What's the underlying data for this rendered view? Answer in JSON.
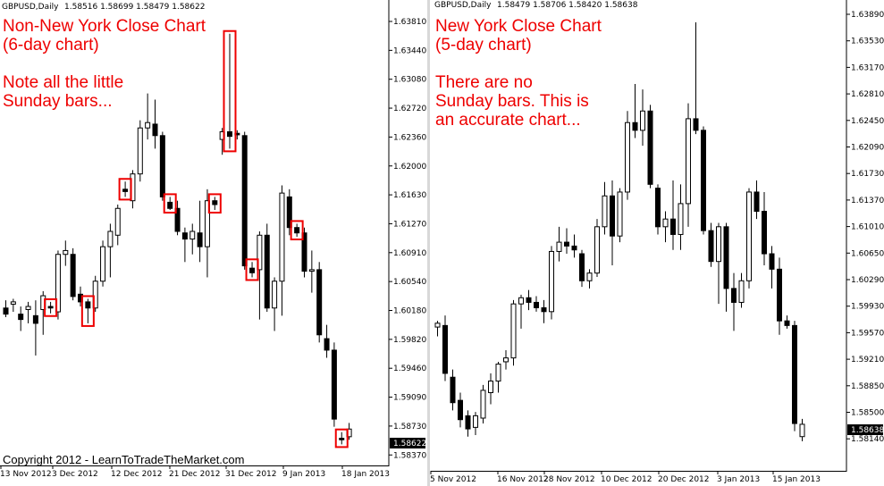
{
  "chart_data": [
    {
      "type": "candlestick",
      "header": {
        "symbol_label": "GBPUSD,Daily",
        "ohlc_text": "1.58516 1.58699 1.58479 1.58622"
      },
      "annotations": [
        "Non-New York Close Chart",
        "(6-day chart)",
        "",
        "Note all the little",
        "Sunday bars..."
      ],
      "copyright": "Copyright 2012 - LearnToTradeTheMarket.com",
      "price_ticks": [
        "1.63810",
        "1.63440",
        "1.63080",
        "1.62720",
        "1.62360",
        "1.62000",
        "1.61630",
        "1.61270",
        "1.60910",
        "1.60540",
        "1.60180",
        "1.59820",
        "1.59460",
        "1.59090",
        "1.58730",
        "1.58370"
      ],
      "date_ticks": [
        "13 Nov 2012",
        "3 Dec 2012",
        "12 Dec 2012",
        "21 Dec 2012",
        "31 Dec 2012",
        "9 Jan 2013",
        "18 Jan 2013"
      ],
      "last_price": "1.58622",
      "ylim": [
        1.5818,
        1.6401
      ],
      "highlight_color": "#ee0000",
      "candles": [
        [
          1.602,
          1.603,
          1.6008,
          1.6012
        ],
        [
          1.6025,
          1.6032,
          1.6015,
          1.6028
        ],
        [
          1.6012,
          1.6022,
          1.599,
          1.6005
        ],
        [
          1.6018,
          1.6028,
          1.6,
          1.6022
        ],
        [
          1.601,
          1.603,
          1.5958,
          1.6
        ],
        [
          1.6018,
          1.6042,
          1.5985,
          1.6036
        ],
        [
          1.6022,
          1.6028,
          1.6013,
          1.602
        ],
        [
          1.6015,
          1.6095,
          1.6005,
          1.609
        ],
        [
          1.609,
          1.6108,
          1.6075,
          1.6095
        ],
        [
          1.609,
          1.6098,
          1.603,
          1.6035
        ],
        [
          1.6038,
          1.6048,
          1.6022,
          1.6028
        ],
        [
          1.6028,
          1.6032,
          1.6,
          1.602
        ],
        [
          1.602,
          1.6062,
          1.6015,
          1.6055
        ],
        [
          1.6055,
          1.6108,
          1.6048,
          1.61
        ],
        [
          1.61,
          1.613,
          1.606,
          1.612
        ],
        [
          1.6115,
          1.6155,
          1.6102,
          1.615
        ],
        [
          1.6175,
          1.6185,
          1.6165,
          1.6172
        ],
        [
          1.616,
          1.62,
          1.615,
          1.6195
        ],
        [
          1.6195,
          1.6265,
          1.6185,
          1.6255
        ],
        [
          1.6255,
          1.63,
          1.624,
          1.6262
        ],
        [
          1.626,
          1.6292,
          1.6228,
          1.6245
        ],
        [
          1.6245,
          1.625,
          1.616,
          1.6165
        ],
        [
          1.6158,
          1.6165,
          1.6148,
          1.615
        ],
        [
          1.615,
          1.616,
          1.6115,
          1.612
        ],
        [
          1.6118,
          1.6125,
          1.608,
          1.611
        ],
        [
          1.611,
          1.613,
          1.609,
          1.612
        ],
        [
          1.6118,
          1.616,
          1.608,
          1.61
        ],
        [
          1.61,
          1.6175,
          1.606,
          1.616
        ],
        [
          1.616,
          1.6165,
          1.6148,
          1.6155
        ],
        [
          1.624,
          1.6255,
          1.622,
          1.625
        ],
        [
          1.625,
          1.6378,
          1.6228,
          1.6244
        ],
        [
          1.6248,
          1.6252,
          1.624,
          1.6246
        ],
        [
          1.6245,
          1.625,
          1.607,
          1.6075
        ],
        [
          1.6072,
          1.608,
          1.606,
          1.6066
        ],
        [
          1.607,
          1.612,
          1.6005,
          1.6115
        ],
        [
          1.6115,
          1.613,
          1.6015,
          1.602
        ],
        [
          1.602,
          1.606,
          1.599,
          1.6055
        ],
        [
          1.6055,
          1.618,
          1.601,
          1.617
        ],
        [
          1.6165,
          1.6175,
          1.6115,
          1.6125
        ],
        [
          1.6125,
          1.613,
          1.6113,
          1.6118
        ],
        [
          1.6118,
          1.6125,
          1.606,
          1.6068
        ],
        [
          1.6068,
          1.6095,
          1.604,
          1.607
        ],
        [
          1.607,
          1.608,
          1.5975,
          1.5985
        ],
        [
          1.598,
          1.5998,
          1.5955,
          1.5965
        ],
        [
          1.5965,
          1.5975,
          1.5865,
          1.5875
        ],
        [
          1.585,
          1.5858,
          1.5842,
          1.5848
        ],
        [
          1.5852,
          1.587,
          1.5848,
          1.5862
        ]
      ],
      "boxed_candle_indices": [
        6,
        11,
        16,
        22,
        28,
        30,
        33,
        39,
        45
      ]
    },
    {
      "type": "candlestick",
      "header": {
        "symbol_label": "GBPUSD,Daily",
        "ohlc_text": "1.58479 1.58706 1.58420 1.58638"
      },
      "annotations": [
        "New York Close Chart",
        "(5-day chart)",
        "",
        "There are no",
        "Sunday bars. This is",
        "an accurate chart..."
      ],
      "price_ticks": [
        "1.63890",
        "1.63530",
        "1.63170",
        "1.62810",
        "1.62450",
        "1.62090",
        "1.61730",
        "1.61370",
        "1.61010",
        "1.60650",
        "1.60290",
        "1.59930",
        "1.59570",
        "1.59210",
        "1.58850",
        "1.58500",
        "1.58140"
      ],
      "date_ticks": [
        "5 Nov 2012",
        "16 Nov 2012",
        "28 Nov 2012",
        "10 Dec 2012",
        "20 Dec 2012",
        "3 Jan 2013",
        "15 Jan 2013"
      ],
      "last_price": "1.58638",
      "ylim": [
        1.5806,
        1.64
      ],
      "candles": [
        [
          1.599,
          1.5998,
          1.5978,
          1.5995
        ],
        [
          1.5992,
          1.6005,
          1.592,
          1.593
        ],
        [
          1.5925,
          1.5935,
          1.5882,
          1.5892
        ],
        [
          1.5895,
          1.5905,
          1.586,
          1.587
        ],
        [
          1.5875,
          1.5882,
          1.5848,
          1.5858
        ],
        [
          1.586,
          1.588,
          1.585,
          1.5875
        ],
        [
          1.5872,
          1.5915,
          1.5865,
          1.5908
        ],
        [
          1.5905,
          1.593,
          1.589,
          1.592
        ],
        [
          1.592,
          1.5945,
          1.5905,
          1.5942
        ],
        [
          1.5945,
          1.596,
          1.5935,
          1.595
        ],
        [
          1.595,
          1.6025,
          1.594,
          1.602
        ],
        [
          1.602,
          1.6032,
          1.5988,
          1.6028
        ],
        [
          1.6028,
          1.6038,
          1.6012,
          1.6022
        ],
        [
          1.6022,
          1.603,
          1.601,
          1.6015
        ],
        [
          1.6015,
          1.6025,
          1.5995,
          1.601
        ],
        [
          1.601,
          1.6095,
          1.6,
          1.6088
        ],
        [
          1.6088,
          1.612,
          1.6075,
          1.61
        ],
        [
          1.61,
          1.6118,
          1.6085,
          1.6095
        ],
        [
          1.6095,
          1.611,
          1.608,
          1.609
        ],
        [
          1.6085,
          1.609,
          1.6042,
          1.605
        ],
        [
          1.605,
          1.6065,
          1.604,
          1.606
        ],
        [
          1.606,
          1.613,
          1.6055,
          1.612
        ],
        [
          1.612,
          1.6178,
          1.611,
          1.616
        ],
        [
          1.616,
          1.618,
          1.607,
          1.6108
        ],
        [
          1.6108,
          1.617,
          1.61,
          1.6165
        ],
        [
          1.6165,
          1.627,
          1.6155,
          1.6255
        ],
        [
          1.6255,
          1.6305,
          1.6235,
          1.6245
        ],
        [
          1.6245,
          1.6298,
          1.6225,
          1.627
        ],
        [
          1.627,
          1.6278,
          1.617,
          1.6175
        ],
        [
          1.617,
          1.6175,
          1.611,
          1.612
        ],
        [
          1.612,
          1.614,
          1.61,
          1.613
        ],
        [
          1.613,
          1.618,
          1.609,
          1.611
        ],
        [
          1.611,
          1.6175,
          1.609,
          1.615
        ],
        [
          1.615,
          1.628,
          1.612,
          1.626
        ],
        [
          1.626,
          1.6385,
          1.624,
          1.6245
        ],
        [
          1.6245,
          1.625,
          1.611,
          1.6115
        ],
        [
          1.6115,
          1.6125,
          1.6068,
          1.6075
        ],
        [
          1.6075,
          1.6125,
          1.602,
          1.612
        ],
        [
          1.612,
          1.6125,
          1.601,
          1.604
        ],
        [
          1.604,
          1.606,
          1.5985,
          1.6022
        ],
        [
          1.6022,
          1.606,
          1.6015,
          1.605
        ],
        [
          1.605,
          1.617,
          1.604,
          1.6165
        ],
        [
          1.6165,
          1.618,
          1.613,
          1.614
        ],
        [
          1.614,
          1.6165,
          1.607,
          1.6085
        ],
        [
          1.6085,
          1.6095,
          1.604,
          1.6065
        ],
        [
          1.6065,
          1.608,
          1.598,
          1.5998
        ],
        [
          1.5998,
          1.6005,
          1.5988,
          1.5992
        ],
        [
          1.5992,
          1.5998,
          1.5855,
          1.5865
        ],
        [
          1.5848,
          1.5871,
          1.5842,
          1.5864
        ]
      ]
    }
  ]
}
